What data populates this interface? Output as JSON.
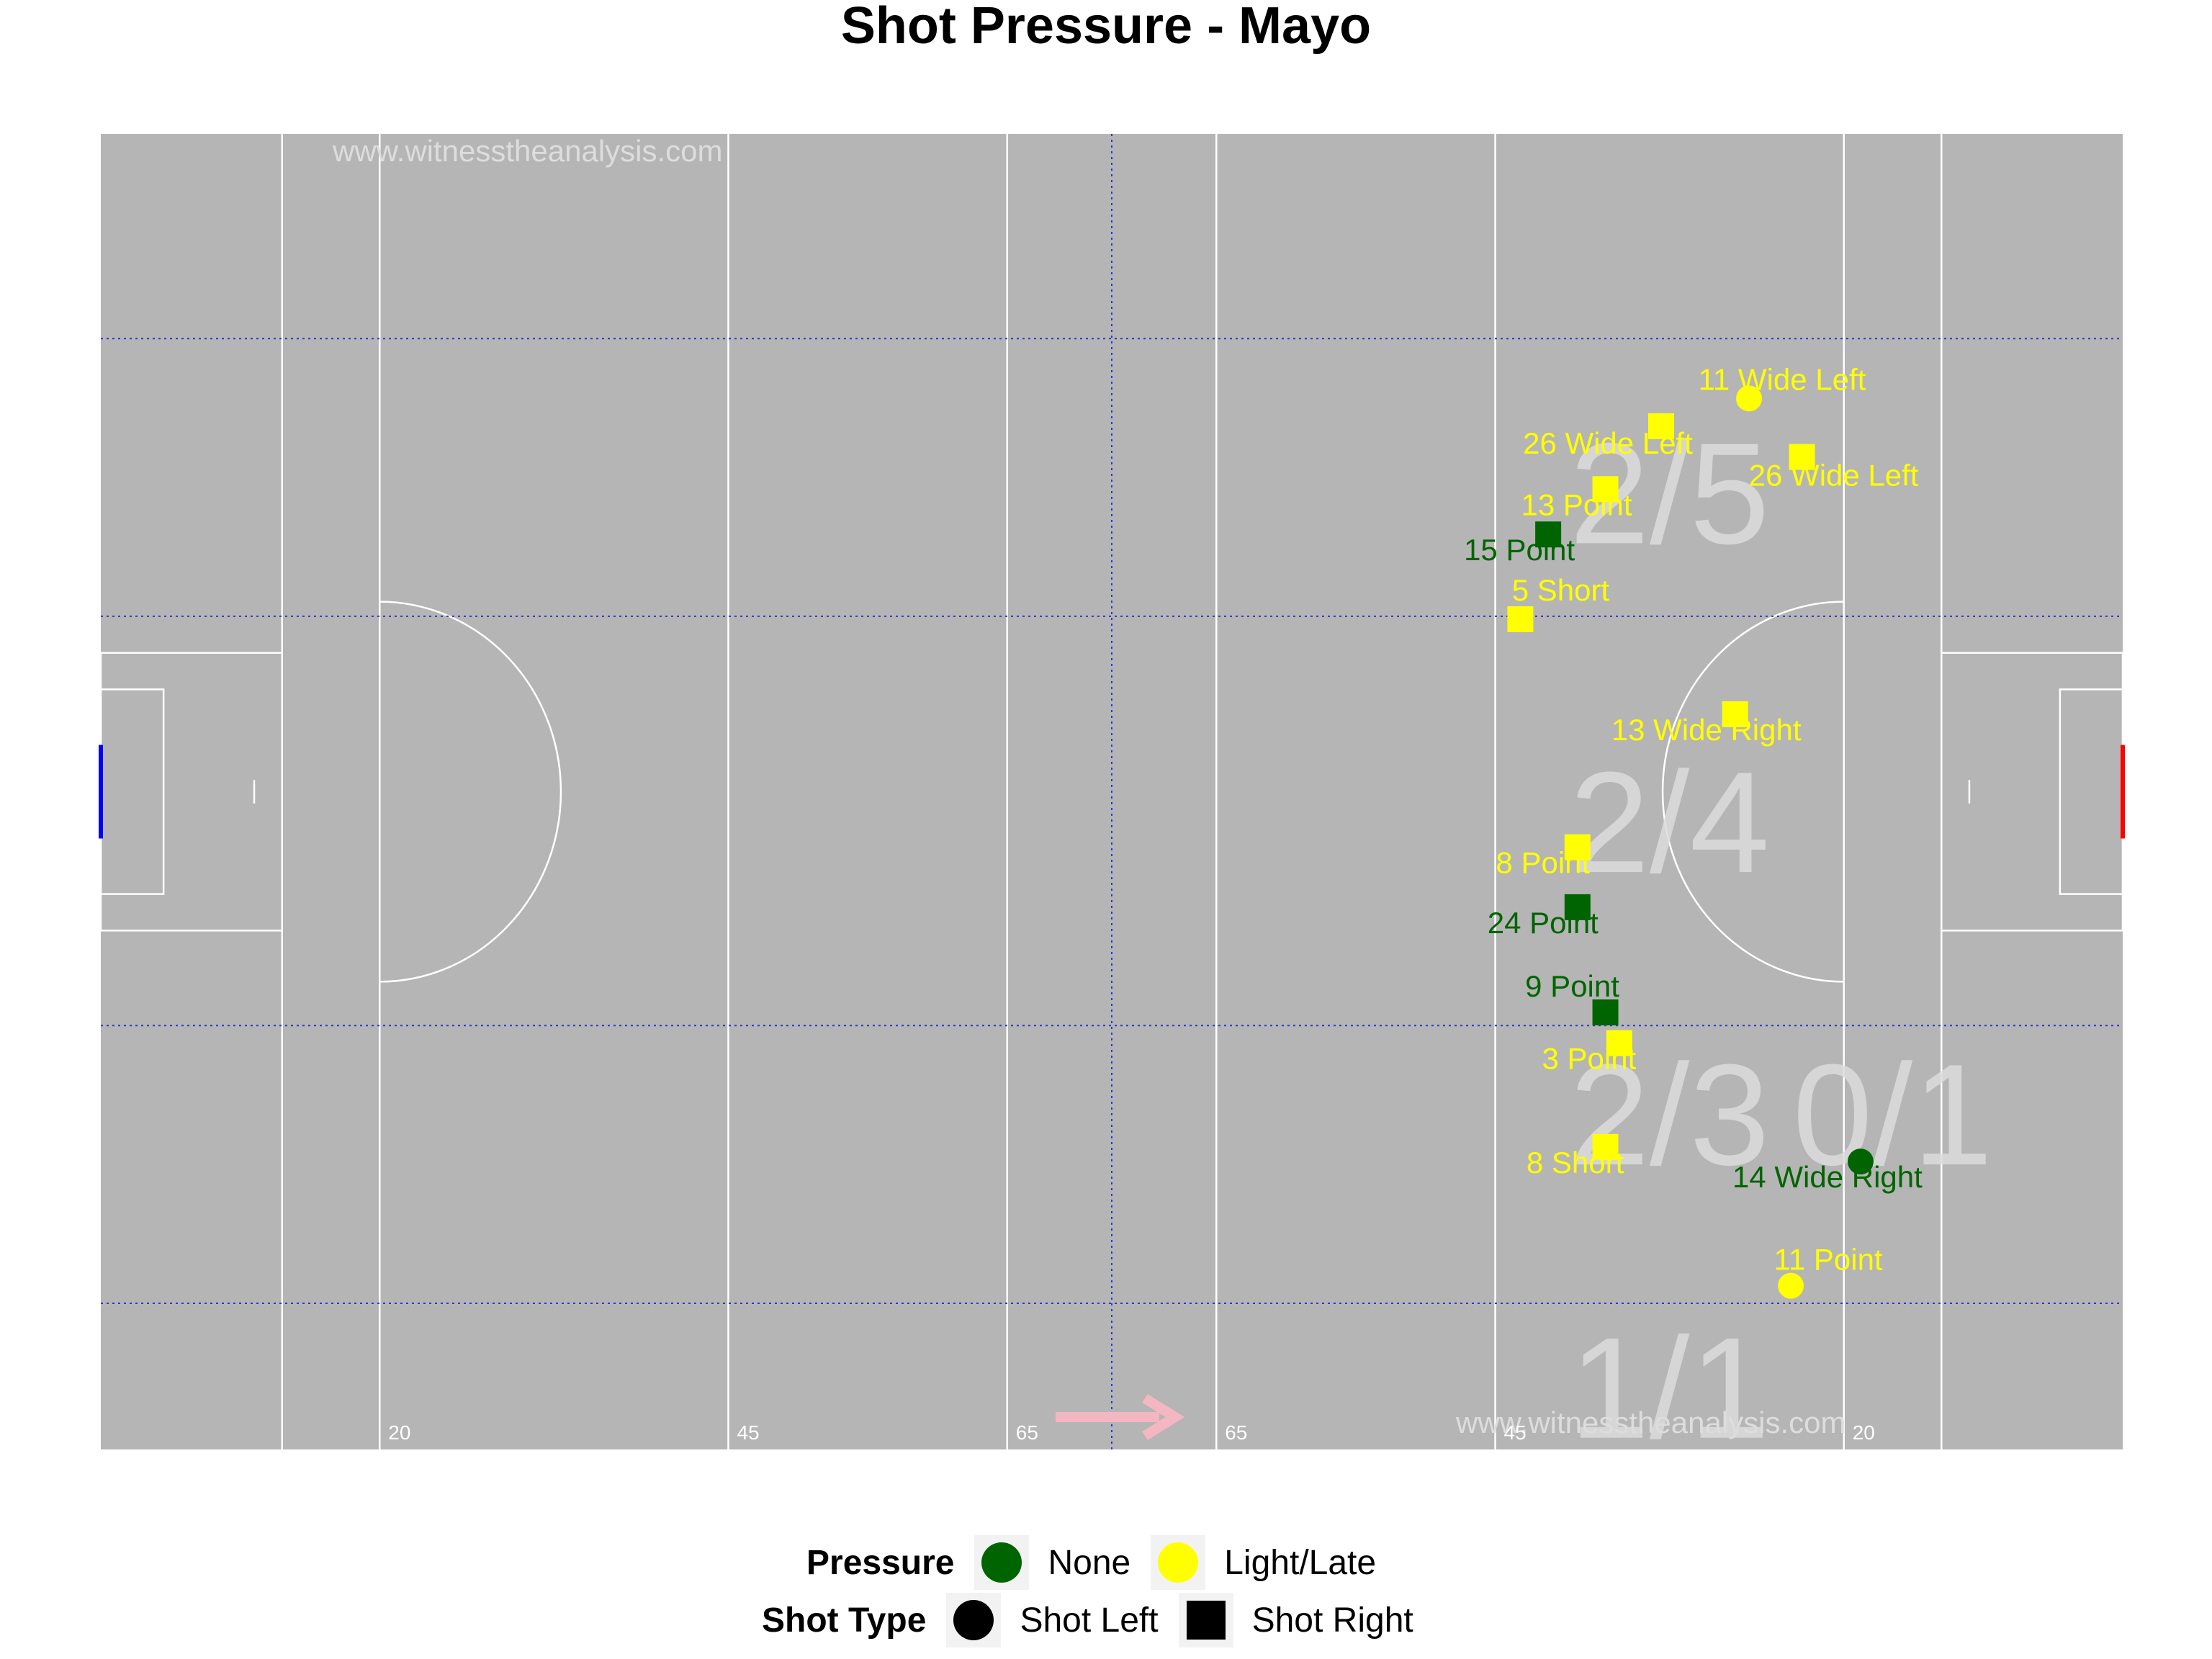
{
  "chart_data": {
    "type": "scatter",
    "title": "Shot Pressure - Mayo",
    "watermark": "www.witnesstheanalysis.com",
    "pitch": {
      "length_m": 145,
      "width_m": 90,
      "line_labels": [
        "20",
        "45",
        "65",
        "65",
        "45",
        "20"
      ]
    },
    "zone_tallies": [
      "2/5",
      "2/4",
      "2/3",
      "0/1",
      "1/1"
    ],
    "legend": {
      "pressure_title": "Pressure",
      "pressure_items": [
        {
          "label": "None",
          "color": "#006400"
        },
        {
          "label": "Light/Late",
          "color": "#ffff00"
        }
      ],
      "shot_type_title": "Shot Type",
      "shot_type_items": [
        {
          "label": "Shot Left",
          "shape": "circle"
        },
        {
          "label": "Shot Right",
          "shape": "square"
        }
      ]
    },
    "colors": {
      "pitch": "#b5b5b5",
      "lines": "#ffffff",
      "grid": "#3333cc",
      "none": "#006400",
      "light_late": "#ffff00",
      "tally": "#dcdcdc",
      "arrow": "#f4b6c2",
      "left_goal": "#0000ff",
      "right_goal": "#ff0000"
    },
    "series": [
      {
        "name": "None",
        "points": [
          {
            "x": 103.8,
            "y": 62.6,
            "shape": "square",
            "label": "15 Point"
          },
          {
            "x": 105.9,
            "y": 37.1,
            "shape": "square",
            "label": "24 Point"
          },
          {
            "x": 107.9,
            "y": 29.9,
            "shape": "square",
            "label": "9 Point"
          },
          {
            "x": 126.2,
            "y": 19.7,
            "shape": "circle",
            "label": "14 Wide Right"
          }
        ]
      },
      {
        "name": "Light/Late",
        "points": [
          {
            "x": 118.2,
            "y": 71.9,
            "shape": "circle",
            "label": "11 Wide Left"
          },
          {
            "x": 111.9,
            "y": 70.0,
            "shape": "square",
            "label": "26 Wide Left"
          },
          {
            "x": 122.0,
            "y": 67.9,
            "shape": "square",
            "label": "26 Wide Left"
          },
          {
            "x": 107.9,
            "y": 65.7,
            "shape": "square",
            "label": "13 Point"
          },
          {
            "x": 101.8,
            "y": 56.8,
            "shape": "square",
            "label": "5 Short"
          },
          {
            "x": 117.2,
            "y": 50.3,
            "shape": "square",
            "label": "13 Wide Right"
          },
          {
            "x": 105.9,
            "y": 41.2,
            "shape": "square",
            "label": "8 Point"
          },
          {
            "x": 108.9,
            "y": 27.8,
            "shape": "square",
            "label": "3 Point"
          },
          {
            "x": 107.9,
            "y": 20.7,
            "shape": "square",
            "label": "8 Short"
          },
          {
            "x": 121.2,
            "y": 11.2,
            "shape": "circle",
            "label": "11 Point"
          }
        ]
      }
    ]
  }
}
